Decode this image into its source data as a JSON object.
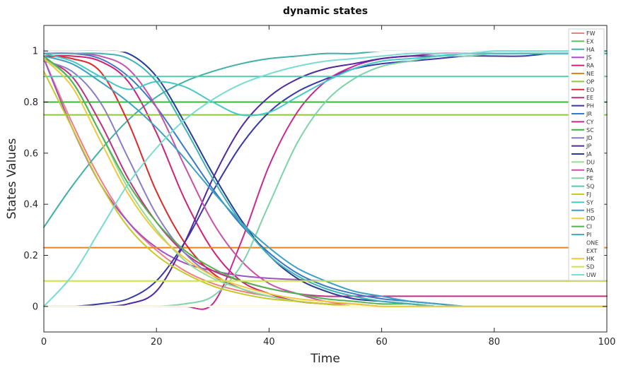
{
  "chart_data": {
    "type": "line",
    "title": "dynamic states",
    "xlabel": "Time",
    "ylabel": "States Values",
    "xlim": [
      0,
      100
    ],
    "ylim": [
      -0.1,
      1.1
    ],
    "xticks": [
      0,
      20,
      40,
      60,
      80,
      100
    ],
    "xtick_labels": [
      "0",
      "20",
      "40",
      "60",
      "80",
      "100"
    ],
    "yticks": [
      0,
      0.2,
      0.4,
      0.6,
      0.8,
      1
    ],
    "ytick_labels": [
      "0",
      "0.2",
      "0.4",
      "0.6",
      "0.8",
      "1"
    ],
    "grid": false,
    "legend_position": "top-right",
    "x": [
      0,
      5,
      10,
      15,
      20,
      25,
      30,
      35,
      40,
      45,
      50,
      55,
      60,
      65,
      70,
      75,
      80,
      85,
      90,
      95,
      100
    ],
    "series": [
      {
        "name": "FW",
        "color": "#f08080",
        "values": [
          0.97,
          0.72,
          0.5,
          0.33,
          0.22,
          0.14,
          0.09,
          0.06,
          0.04,
          0.02,
          0.01,
          0.01,
          0,
          0,
          0,
          0,
          0,
          0,
          0,
          0,
          0
        ]
      },
      {
        "name": "EX",
        "color": "#56c05a",
        "values": [
          0.8,
          0.8,
          0.8,
          0.8,
          0.8,
          0.8,
          0.8,
          0.8,
          0.8,
          0.8,
          0.8,
          0.8,
          0.8,
          0.8,
          0.8,
          0.8,
          0.8,
          0.8,
          0.8,
          0.8,
          0.8
        ]
      },
      {
        "name": "HA",
        "color": "#40b0a6",
        "values": [
          0.31,
          0.47,
          0.61,
          0.73,
          0.82,
          0.88,
          0.92,
          0.95,
          0.97,
          0.98,
          0.99,
          0.99,
          1,
          1,
          1,
          1,
          1,
          1,
          1,
          1,
          1
        ]
      },
      {
        "name": "JS",
        "color": "#a050c8",
        "values": [
          0.97,
          0.7,
          0.48,
          0.33,
          0.23,
          0.17,
          0.14,
          0.12,
          0.11,
          0.105,
          0.1,
          0.1,
          0.1,
          0.1,
          0.1,
          0.1,
          0.1,
          0.1,
          0.1,
          0.1,
          0.1
        ]
      },
      {
        "name": "RA",
        "color": "#d02078",
        "values": [
          0.98,
          0.98,
          0.96,
          0.88,
          0.68,
          0.42,
          0.22,
          0.1,
          0.05,
          0.02,
          0.01,
          0,
          0,
          0,
          0,
          0,
          0,
          0,
          0,
          0,
          0
        ]
      },
      {
        "name": "NE",
        "color": "#e8821e",
        "values": [
          0.23,
          0.23,
          0.23,
          0.23,
          0.23,
          0.23,
          0.23,
          0.23,
          0.23,
          0.23,
          0.23,
          0.23,
          0.23,
          0.23,
          0.23,
          0.23,
          0.23,
          0.23,
          0.23,
          0.23,
          0.23
        ]
      },
      {
        "name": "OP",
        "color": "#8cc83c",
        "values": [
          0.75,
          0.75,
          0.75,
          0.75,
          0.75,
          0.75,
          0.75,
          0.75,
          0.75,
          0.75,
          0.75,
          0.75,
          0.75,
          0.75,
          0.75,
          0.75,
          0.75,
          0.75,
          0.75,
          0.75,
          0.75
        ]
      },
      {
        "name": "EO",
        "color": "#e02828",
        "values": [
          0.98,
          0.97,
          0.92,
          0.72,
          0.45,
          0.25,
          0.13,
          0.07,
          0.04,
          0.02,
          0.01,
          0,
          0,
          0,
          0,
          0,
          0,
          0,
          0,
          0,
          0
        ]
      },
      {
        "name": "EE",
        "color": "#c03080",
        "values": [
          0.97,
          0.9,
          0.72,
          0.5,
          0.33,
          0.21,
          0.14,
          0.1,
          0.07,
          0.05,
          0.04,
          0.04,
          0.04,
          0.04,
          0.04,
          0.04,
          0.04,
          0.04,
          0.04,
          0.04,
          0.04
        ]
      },
      {
        "name": "PH",
        "color": "#3838a8",
        "values": [
          0,
          0,
          0.01,
          0.03,
          0.1,
          0.25,
          0.45,
          0.63,
          0.76,
          0.84,
          0.89,
          0.93,
          0.95,
          0.96,
          0.97,
          0.98,
          0.98,
          0.98,
          0.99,
          0.99,
          0.99
        ]
      },
      {
        "name": "JR",
        "color": "#3c78c8",
        "values": [
          0.99,
          0.99,
          0.97,
          0.9,
          0.78,
          0.62,
          0.46,
          0.32,
          0.21,
          0.13,
          0.08,
          0.05,
          0.03,
          0.02,
          0.01,
          0,
          0,
          0,
          0,
          0,
          0
        ]
      },
      {
        "name": "CY",
        "color": "#c82894",
        "values": [
          0,
          0,
          0,
          0,
          0,
          0,
          0.01,
          0.25,
          0.55,
          0.76,
          0.88,
          0.94,
          0.97,
          0.98,
          0.99,
          0.99,
          0.99,
          0.99,
          0.99,
          0.99,
          0.99
        ]
      },
      {
        "name": "SC",
        "color": "#3cb43c",
        "values": [
          0.8,
          0.8,
          0.8,
          0.8,
          0.8,
          0.8,
          0.8,
          0.8,
          0.8,
          0.8,
          0.8,
          0.8,
          0.8,
          0.8,
          0.8,
          0.8,
          0.8,
          0.8,
          0.8,
          0.8,
          0.8
        ]
      },
      {
        "name": "JD",
        "color": "#8a7cc8",
        "values": [
          0.96,
          0.92,
          0.8,
          0.58,
          0.36,
          0.21,
          0.12,
          0.07,
          0.04,
          0.02,
          0.01,
          0,
          0,
          0,
          0,
          0,
          0,
          0,
          0,
          0,
          0
        ]
      },
      {
        "name": "JP",
        "color": "#5028a0",
        "values": [
          0,
          0,
          0,
          0.01,
          0.06,
          0.25,
          0.5,
          0.7,
          0.82,
          0.89,
          0.93,
          0.95,
          0.97,
          0.98,
          0.98,
          0.99,
          0.99,
          0.99,
          0.99,
          0.99,
          0.99
        ]
      },
      {
        "name": "JA",
        "color": "#283c96",
        "values": [
          1,
          1,
          1,
          0.99,
          0.9,
          0.72,
          0.52,
          0.34,
          0.2,
          0.11,
          0.06,
          0.03,
          0.02,
          0.01,
          0,
          0,
          0,
          0,
          0,
          0,
          0
        ]
      },
      {
        "name": "DU",
        "color": "#96dc96",
        "values": [
          0.97,
          0.88,
          0.68,
          0.46,
          0.3,
          0.18,
          0.11,
          0.07,
          0.04,
          0.02,
          0.01,
          0,
          0,
          0,
          0,
          0,
          0,
          0,
          0,
          0,
          0
        ]
      },
      {
        "name": "PA",
        "color": "#c850a8",
        "values": [
          0.99,
          0.99,
          0.98,
          0.93,
          0.78,
          0.55,
          0.33,
          0.18,
          0.09,
          0.05,
          0.02,
          0.01,
          0,
          0,
          0,
          0,
          0,
          0,
          0,
          0,
          0
        ]
      },
      {
        "name": "PE",
        "color": "#7ed2a8",
        "values": [
          0,
          0,
          0,
          0,
          0,
          0.01,
          0.04,
          0.16,
          0.4,
          0.64,
          0.8,
          0.89,
          0.94,
          0.96,
          0.98,
          0.98,
          0.99,
          0.99,
          0.99,
          0.99,
          0.99
        ]
      },
      {
        "name": "SQ",
        "color": "#50c8b4",
        "values": [
          0.9,
          0.9,
          0.9,
          0.9,
          0.9,
          0.9,
          0.9,
          0.9,
          0.9,
          0.9,
          0.9,
          0.9,
          0.9,
          0.9,
          0.9,
          0.9,
          0.9,
          0.9,
          0.9,
          0.9,
          0.9
        ]
      },
      {
        "name": "FJ",
        "color": "#c8c828",
        "values": [
          0.92,
          0.7,
          0.48,
          0.31,
          0.2,
          0.13,
          0.08,
          0.05,
          0.03,
          0.02,
          0.01,
          0,
          0,
          0,
          0,
          0,
          0,
          0,
          0,
          0,
          0
        ]
      },
      {
        "name": "SY",
        "color": "#46c8c8",
        "values": [
          0.99,
          0.96,
          0.9,
          0.85,
          0.88,
          0.86,
          0.8,
          0.75,
          0.76,
          0.82,
          0.88,
          0.93,
          0.96,
          0.97,
          0.98,
          0.99,
          0.99,
          0.99,
          0.99,
          0.99,
          0.99
        ]
      },
      {
        "name": "HS",
        "color": "#3ca0c0",
        "values": [
          0.98,
          0.95,
          0.88,
          0.8,
          0.7,
          0.58,
          0.45,
          0.33,
          0.23,
          0.15,
          0.1,
          0.06,
          0.04,
          0.02,
          0.01,
          0,
          0,
          0,
          0,
          0,
          0
        ]
      },
      {
        "name": "DD",
        "color": "#f0d228",
        "values": [
          0,
          0,
          0,
          0,
          0,
          0,
          0,
          0,
          0,
          0,
          0,
          0,
          0,
          0,
          0,
          0,
          0,
          0,
          0,
          0,
          0
        ]
      },
      {
        "name": "CI",
        "color": "#50b450",
        "values": [
          0.98,
          0.88,
          0.68,
          0.48,
          0.33,
          0.22,
          0.15,
          0.1,
          0.07,
          0.05,
          0.03,
          0.02,
          0.01,
          0.01,
          0,
          0,
          0,
          0,
          0,
          0,
          0
        ]
      },
      {
        "name": "PI",
        "color": "#40b4b4",
        "values": [
          0.99,
          0.99,
          0.99,
          0.97,
          0.88,
          0.7,
          0.5,
          0.33,
          0.2,
          0.12,
          0.07,
          0.04,
          0.02,
          0.01,
          0,
          0,
          0,
          0,
          0,
          0,
          0
        ]
      },
      {
        "name": "ONE",
        "color": "#ffffff",
        "values": [
          1,
          1,
          1,
          1,
          1,
          1,
          1,
          1,
          1,
          1,
          1,
          1,
          1,
          1,
          1,
          1,
          1,
          1,
          1,
          1,
          1
        ]
      },
      {
        "name": "EXT",
        "color": "#ffffff",
        "values": [
          0,
          0,
          0,
          0,
          0,
          0,
          0,
          0,
          0,
          0,
          0,
          0,
          0,
          0,
          0,
          0,
          0,
          0,
          0,
          0,
          0
        ]
      },
      {
        "name": "HK",
        "color": "#f0c83c",
        "values": [
          0.97,
          0.86,
          0.65,
          0.44,
          0.29,
          0.19,
          0.12,
          0.08,
          0.05,
          0.03,
          0.02,
          0.01,
          0,
          0,
          0,
          0,
          0,
          0,
          0,
          0,
          0
        ]
      },
      {
        "name": "SD",
        "color": "#c8e646",
        "values": [
          0.1,
          0.1,
          0.1,
          0.1,
          0.1,
          0.1,
          0.1,
          0.1,
          0.1,
          0.1,
          0.1,
          0.1,
          0.1,
          0.1,
          0.1,
          0.1,
          0.1,
          0.1,
          0.1,
          0.1,
          0.1
        ]
      },
      {
        "name": "UW",
        "color": "#78dcd2",
        "values": [
          0,
          0.12,
          0.3,
          0.48,
          0.62,
          0.73,
          0.81,
          0.87,
          0.91,
          0.94,
          0.96,
          0.97,
          0.98,
          0.99,
          0.99,
          0.99,
          1,
          1,
          1,
          1,
          1
        ]
      }
    ]
  }
}
